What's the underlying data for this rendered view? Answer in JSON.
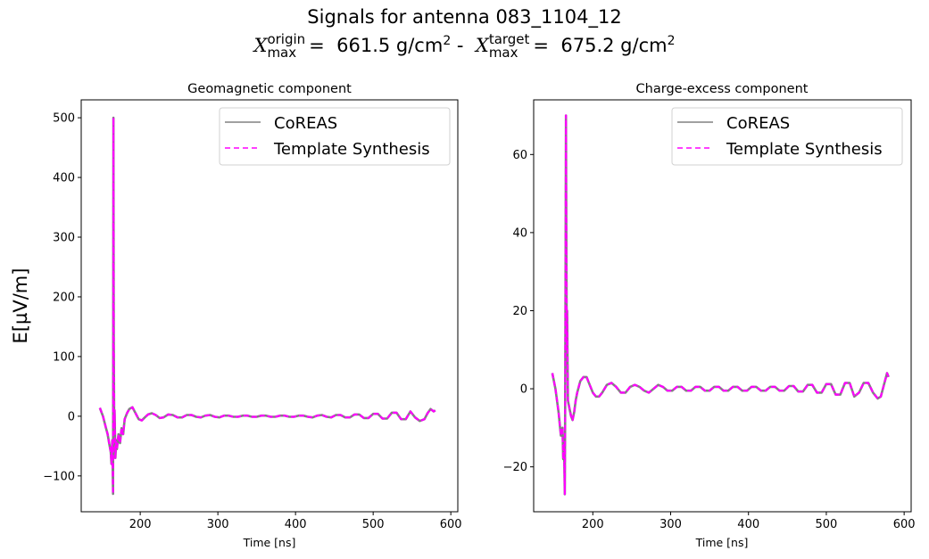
{
  "figure": {
    "title_line1": "Signals for antenna 083_1104_12",
    "title_line2": {
      "symbol": "X",
      "origin_sup": "origin",
      "origin_sub": "max",
      "origin_value": "661.5 g/cm",
      "separator": " - ",
      "target_sup": "target",
      "target_sub": "max",
      "target_value": "675.2 g/cm",
      "unit_exp": "2"
    },
    "ylabel": "E[µV/m]",
    "colors": {
      "coreas": "#808080",
      "template": "#ff00ff"
    }
  },
  "chart_data": [
    {
      "type": "line",
      "title": "Geomagnetic component",
      "xlabel": "Time [ns]",
      "ylabel": "E[µV/m]",
      "xlim": [
        124,
        609
      ],
      "ylim": [
        -160,
        530
      ],
      "xticks": [
        200,
        300,
        400,
        500,
        600
      ],
      "yticks": [
        -100,
        0,
        100,
        200,
        300,
        400,
        500
      ],
      "ytick_labels": [
        "−100",
        "0",
        "100",
        "200",
        "300",
        "400",
        "500"
      ],
      "legend": [
        "CoREAS",
        "Template Synthesis"
      ],
      "legend_position": "upper right",
      "grid": false,
      "series": [
        {
          "name": "CoREAS",
          "style": "solid",
          "color": "#808080",
          "x": [
            148,
            152,
            156,
            158,
            160,
            162,
            163,
            164,
            165,
            165.5,
            166,
            166.5,
            167,
            168,
            169,
            170,
            172,
            174,
            176,
            178,
            180,
            183,
            186,
            190,
            194,
            198,
            202,
            206,
            210,
            215,
            220,
            225,
            230,
            236,
            242,
            248,
            254,
            260,
            266,
            272,
            278,
            284,
            290,
            296,
            302,
            308,
            314,
            320,
            326,
            332,
            338,
            344,
            350,
            356,
            362,
            368,
            374,
            380,
            386,
            392,
            398,
            404,
            410,
            416,
            422,
            428,
            434,
            440,
            446,
            452,
            458,
            464,
            470,
            476,
            482,
            488,
            494,
            500,
            506,
            512,
            518,
            524,
            530,
            536,
            542,
            548,
            554,
            560,
            566,
            570,
            574,
            578,
            580
          ],
          "y": [
            14,
            0,
            -20,
            -30,
            -45,
            -60,
            -80,
            -40,
            -130,
            500,
            120,
            -20,
            10,
            -70,
            -40,
            -55,
            -30,
            -45,
            -20,
            -30,
            -5,
            5,
            12,
            15,
            5,
            -5,
            -7,
            -2,
            3,
            5,
            2,
            -3,
            -2,
            3,
            2,
            -2,
            -2,
            2,
            2,
            -1,
            -2,
            1,
            2,
            -1,
            -2,
            1,
            1,
            -1,
            -1,
            1,
            1,
            -1,
            -1,
            1,
            1,
            -1,
            -1,
            1,
            1,
            -1,
            -1,
            1,
            1,
            -1,
            -2,
            1,
            2,
            -1,
            -2,
            2,
            2,
            -2,
            -2,
            3,
            3,
            -3,
            -3,
            4,
            4,
            -4,
            -4,
            6,
            6,
            -5,
            -5,
            8,
            -2,
            -8,
            -5,
            5,
            12,
            8,
            10
          ]
        },
        {
          "name": "Template Synthesis",
          "style": "dashed",
          "color": "#ff00ff",
          "x": [
            148,
            152,
            156,
            158,
            160,
            162,
            163,
            164,
            165,
            165.5,
            166,
            166.5,
            167,
            168,
            169,
            170,
            172,
            174,
            176,
            178,
            180,
            183,
            186,
            190,
            194,
            198,
            202,
            206,
            210,
            215,
            220,
            225,
            230,
            236,
            242,
            248,
            254,
            260,
            266,
            272,
            278,
            284,
            290,
            296,
            302,
            308,
            314,
            320,
            326,
            332,
            338,
            344,
            350,
            356,
            362,
            368,
            374,
            380,
            386,
            392,
            398,
            404,
            410,
            416,
            422,
            428,
            434,
            440,
            446,
            452,
            458,
            464,
            470,
            476,
            482,
            488,
            494,
            500,
            506,
            512,
            518,
            524,
            530,
            536,
            542,
            548,
            554,
            560,
            566,
            570,
            574,
            578,
            580
          ],
          "y": [
            14,
            0,
            -20,
            -30,
            -45,
            -60,
            -80,
            -40,
            -130,
            500,
            120,
            -20,
            10,
            -70,
            -40,
            -55,
            -30,
            -45,
            -20,
            -30,
            -5,
            5,
            12,
            15,
            5,
            -5,
            -7,
            -2,
            3,
            5,
            2,
            -3,
            -2,
            3,
            2,
            -2,
            -2,
            2,
            2,
            -1,
            -2,
            1,
            2,
            -1,
            -2,
            1,
            1,
            -1,
            -1,
            1,
            1,
            -1,
            -1,
            1,
            1,
            -1,
            -1,
            1,
            1,
            -1,
            -1,
            1,
            1,
            -1,
            -2,
            1,
            2,
            -1,
            -2,
            2,
            2,
            -2,
            -2,
            3,
            3,
            -3,
            -3,
            4,
            4,
            -4,
            -4,
            6,
            6,
            -5,
            -5,
            8,
            -2,
            -8,
            -5,
            5,
            12,
            8,
            10
          ]
        }
      ]
    },
    {
      "type": "line",
      "title": "Charge-excess component",
      "xlabel": "Time [ns]",
      "ylabel": "",
      "xlim": [
        124,
        609
      ],
      "ylim": [
        -31.5,
        74
      ],
      "xticks": [
        200,
        300,
        400,
        500,
        600
      ],
      "yticks": [
        -20,
        0,
        20,
        40,
        60
      ],
      "ytick_labels": [
        "−20",
        "0",
        "20",
        "40",
        "60"
      ],
      "legend": [
        "CoREAS",
        "Template Synthesis"
      ],
      "legend_position": "upper right",
      "grid": false,
      "series": [
        {
          "name": "CoREAS",
          "style": "solid",
          "color": "#808080",
          "x": [
            148,
            152,
            156,
            159,
            161,
            162,
            163,
            164,
            164.5,
            165,
            165.5,
            166,
            166.5,
            167,
            168,
            170,
            172,
            174,
            176,
            178,
            180,
            184,
            188,
            192,
            196,
            200,
            204,
            208,
            212,
            218,
            224,
            230,
            236,
            242,
            248,
            254,
            260,
            266,
            272,
            278,
            284,
            290,
            296,
            302,
            308,
            314,
            320,
            326,
            332,
            338,
            344,
            350,
            356,
            362,
            368,
            374,
            380,
            386,
            392,
            398,
            404,
            410,
            416,
            422,
            428,
            434,
            440,
            446,
            452,
            458,
            464,
            470,
            476,
            482,
            488,
            494,
            500,
            506,
            512,
            518,
            524,
            530,
            536,
            542,
            548,
            554,
            560,
            566,
            570,
            574,
            578,
            580
          ],
          "y": [
            4,
            0,
            -6,
            -12,
            -10,
            -18,
            -14,
            -27,
            -5,
            35,
            70,
            40,
            10,
            20,
            -3,
            -5,
            -7,
            -8,
            -6,
            -3,
            -1,
            2,
            3,
            3,
            1,
            -1,
            -2,
            -2,
            -1,
            1,
            1.5,
            0.5,
            -1,
            -1,
            0.5,
            1,
            0.5,
            -0.5,
            -1,
            0,
            1,
            0.5,
            -0.5,
            -0.5,
            0.5,
            0.5,
            -0.5,
            -0.5,
            0.5,
            0.5,
            -0.5,
            -0.5,
            0.5,
            0.5,
            -0.5,
            -0.5,
            0.5,
            0.5,
            -0.5,
            -0.5,
            0.5,
            0.5,
            -0.5,
            -0.5,
            0.5,
            0.5,
            -0.5,
            -0.5,
            0.7,
            0.7,
            -0.7,
            -0.7,
            1,
            1,
            -1,
            -1,
            1.2,
            1.2,
            -1.5,
            -1.5,
            1.5,
            1.5,
            -2,
            -1,
            1.5,
            1.5,
            -1,
            -2.5,
            -2,
            1,
            4,
            3
          ]
        },
        {
          "name": "Template Synthesis",
          "style": "dashed",
          "color": "#ff00ff",
          "x": [
            148,
            152,
            156,
            159,
            161,
            162,
            163,
            164,
            164.5,
            165,
            165.5,
            166,
            166.5,
            167,
            168,
            170,
            172,
            174,
            176,
            178,
            180,
            184,
            188,
            192,
            196,
            200,
            204,
            208,
            212,
            218,
            224,
            230,
            236,
            242,
            248,
            254,
            260,
            266,
            272,
            278,
            284,
            290,
            296,
            302,
            308,
            314,
            320,
            326,
            332,
            338,
            344,
            350,
            356,
            362,
            368,
            374,
            380,
            386,
            392,
            398,
            404,
            410,
            416,
            422,
            428,
            434,
            440,
            446,
            452,
            458,
            464,
            470,
            476,
            482,
            488,
            494,
            500,
            506,
            512,
            518,
            524,
            530,
            536,
            542,
            548,
            554,
            560,
            566,
            570,
            574,
            578,
            580
          ],
          "y": [
            4,
            0,
            -6,
            -12,
            -10,
            -18,
            -14,
            -27,
            -5,
            35,
            70,
            40,
            10,
            20,
            -3,
            -5,
            -7,
            -8,
            -6,
            -3,
            -1,
            2,
            3,
            3,
            1,
            -1,
            -2,
            -2,
            -1,
            1,
            1.5,
            0.5,
            -1,
            -1,
            0.5,
            1,
            0.5,
            -0.5,
            -1,
            0,
            1,
            0.5,
            -0.5,
            -0.5,
            0.5,
            0.5,
            -0.5,
            -0.5,
            0.5,
            0.5,
            -0.5,
            -0.5,
            0.5,
            0.5,
            -0.5,
            -0.5,
            0.5,
            0.5,
            -0.5,
            -0.5,
            0.5,
            0.5,
            -0.5,
            -0.5,
            0.5,
            0.5,
            -0.5,
            -0.5,
            0.7,
            0.7,
            -0.7,
            -0.7,
            1,
            1,
            -1,
            -1,
            1.2,
            1.2,
            -1.5,
            -1.5,
            1.5,
            1.5,
            -2,
            -1,
            1.5,
            1.5,
            -1,
            -2.5,
            -2,
            1,
            4,
            3
          ]
        }
      ]
    }
  ]
}
